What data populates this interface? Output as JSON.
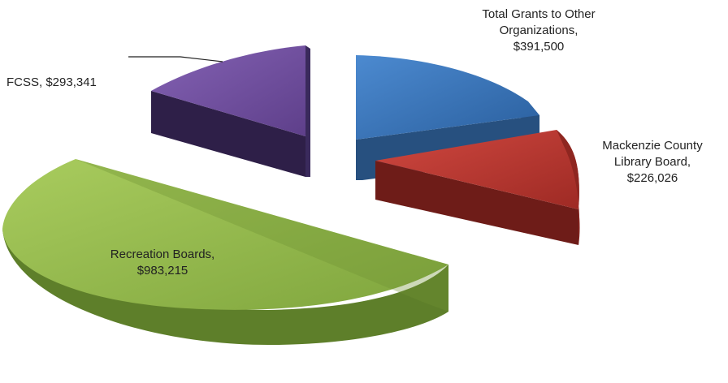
{
  "chart_data": {
    "type": "pie",
    "title": "",
    "slices": [
      {
        "label": "Total Grants to Other Organizations",
        "value": 391500,
        "value_text": "$391,500",
        "color": "#2E6DB5"
      },
      {
        "label": "Mackenzie County Library Board",
        "value": 226026,
        "value_text": "$226,026",
        "color": "#B8342C"
      },
      {
        "label": "Recreation Boards",
        "value": 983215,
        "value_text": "$983,215",
        "color": "#8DB545"
      },
      {
        "label": "FCSS",
        "value": 293341,
        "value_text": "$293,341",
        "color": "#6B4A9A"
      }
    ],
    "style": "3d-exploded",
    "legend": "none",
    "labels": {
      "grants": {
        "line1": "Total Grants to Other",
        "line2": "Organizations,",
        "value": "$391,500"
      },
      "library": {
        "line1": "Mackenzie County",
        "line2": "Library Board,",
        "value": "$226,026"
      },
      "recreation": {
        "line1": "Recreation Boards,",
        "value": "$983,215"
      },
      "fcss": {
        "text": "FCSS,  $293,341"
      }
    }
  }
}
